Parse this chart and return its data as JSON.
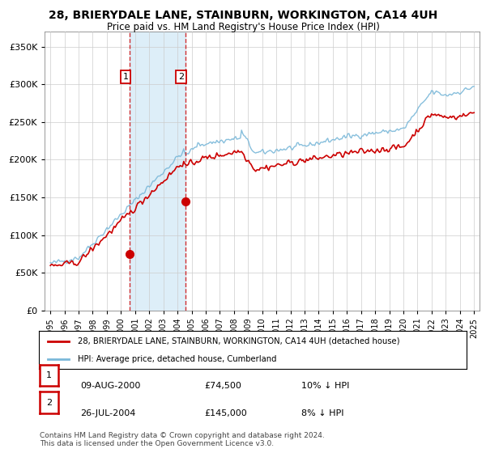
{
  "title": "28, BRIERYDALE LANE, STAINBURN, WORKINGTON, CA14 4UH",
  "subtitle": "Price paid vs. HM Land Registry's House Price Index (HPI)",
  "legend_line1": "28, BRIERYDALE LANE, STAINBURN, WORKINGTON, CA14 4UH (detached house)",
  "legend_line2": "HPI: Average price, detached house, Cumberland",
  "transaction1_date": "09-AUG-2000",
  "transaction1_price": "£74,500",
  "transaction1_hpi": "10% ↓ HPI",
  "transaction2_date": "26-JUL-2004",
  "transaction2_price": "£145,000",
  "transaction2_hpi": "8% ↓ HPI",
  "footnote": "Contains HM Land Registry data © Crown copyright and database right 2024.\nThis data is licensed under the Open Government Licence v3.0.",
  "hpi_color": "#7ab8d9",
  "price_color": "#cc0000",
  "vline_color": "#cc0000",
  "shade_color": "#ddeef8",
  "background_color": "#ffffff",
  "plot_bg_color": "#ffffff",
  "grid_color": "#cccccc",
  "ylim": [
    0,
    370000
  ],
  "yticks": [
    0,
    50000,
    100000,
    150000,
    200000,
    250000,
    300000,
    350000
  ],
  "sale1_year": 2000.622,
  "sale2_year": 2004.541,
  "sale1_price": 74500,
  "sale2_price": 145000
}
